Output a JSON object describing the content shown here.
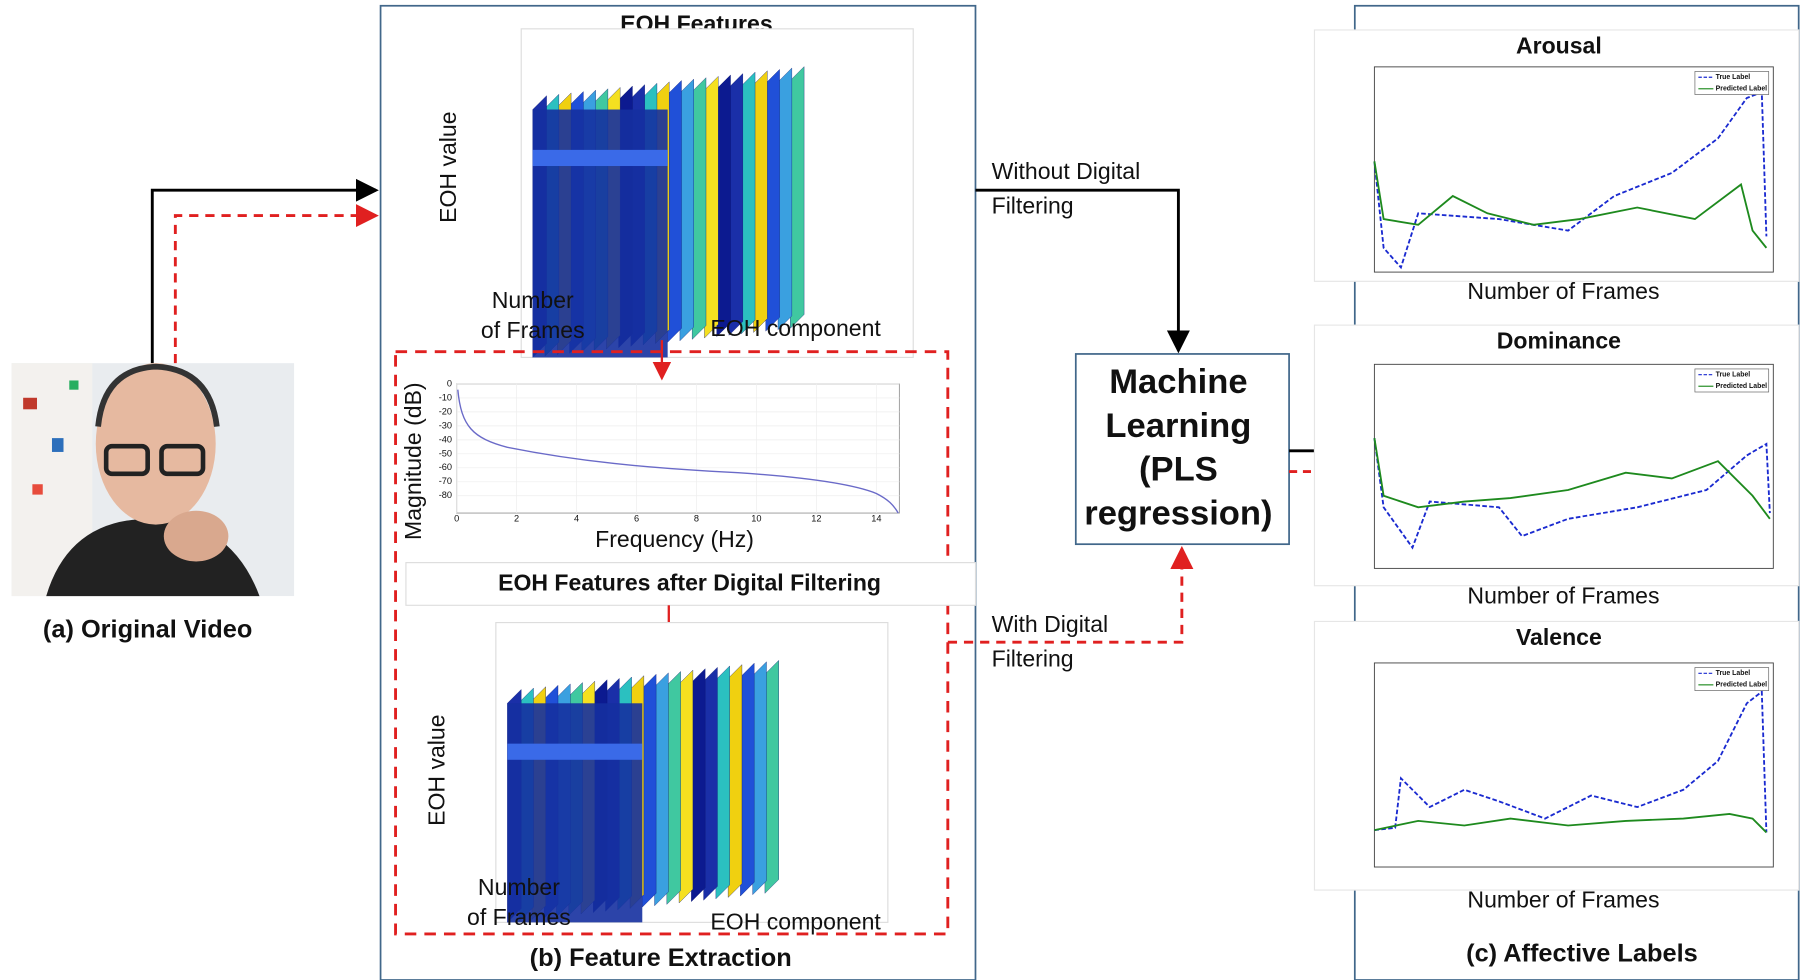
{
  "video": {
    "caption": "(a) Original Video"
  },
  "extraction": {
    "caption": "(b) Feature Extraction",
    "eoh_title": "EOH Features",
    "filtered_title": "EOH Features after Digital Filtering",
    "plot1": {
      "z_label": "EOH value",
      "frames_label": [
        "Number",
        "of Frames"
      ],
      "component_label": "EOH component"
    },
    "plot2": {
      "z_label": "EOH value",
      "frames_label": [
        "Number",
        "of Frames"
      ],
      "component_label": "EOH component"
    },
    "filter": {
      "y_label": "Magnitude (dB)",
      "x_label": "Frequency (Hz)",
      "yticks": [
        0,
        -10,
        -20,
        -30,
        -40,
        -50,
        -60,
        -70,
        -80
      ],
      "xticks": [
        0,
        2,
        4,
        6,
        8,
        10,
        12,
        14
      ]
    }
  },
  "paths": {
    "without": [
      "Without Digital",
      "Filtering"
    ],
    "with": [
      "With Digital",
      "Filtering"
    ]
  },
  "model": {
    "lines": [
      "Machine",
      "Learning",
      "(PLS",
      "regression)"
    ]
  },
  "labels": {
    "caption": "(c) Affective Labels",
    "charts": [
      {
        "title": "Arousal",
        "x_label": "Number of Frames",
        "legend": [
          "True Label",
          "Predicted Label"
        ]
      },
      {
        "title": "Dominance",
        "x_label": "Number of Frames",
        "legend": [
          "True Label",
          "Predicted Label"
        ]
      },
      {
        "title": "Valence",
        "x_label": "Number of Frames",
        "legend": [
          "True Label",
          "Predicted Label"
        ]
      }
    ]
  }
}
